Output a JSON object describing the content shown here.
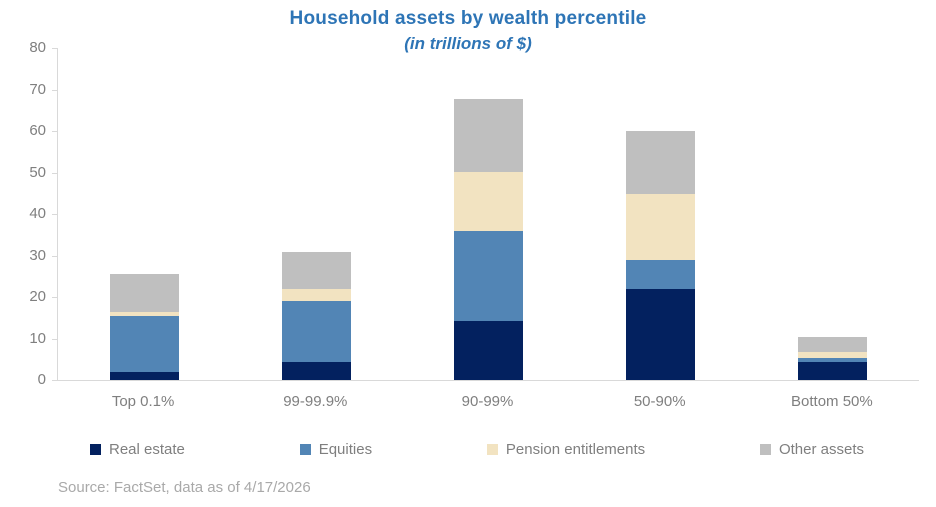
{
  "header": {
    "title": "Household assets by wealth percentile",
    "subtitle": "(in trillions of $)"
  },
  "footer": {
    "source": "Source: FactSet, data as of 4/17/2026"
  },
  "chart_data": {
    "type": "bar",
    "stacked": true,
    "title": "Household assets by wealth percentile",
    "subtitle": "(in trillions of $)",
    "categories": [
      "Top 0.1%",
      "99-99.9%",
      "90-99%",
      "50-90%",
      "Bottom 50%"
    ],
    "series": [
      {
        "name": "Real estate",
        "color": "#03215f",
        "values": [
          1.9,
          4.3,
          14.2,
          22.0,
          4.3
        ]
      },
      {
        "name": "Equities",
        "color": "#5285b5",
        "values": [
          13.6,
          14.7,
          21.7,
          6.8,
          1.0
        ]
      },
      {
        "name": "Pension entitlements",
        "color": "#f2e3c1",
        "values": [
          1.0,
          2.9,
          14.2,
          16.1,
          1.4
        ]
      },
      {
        "name": "Other assets",
        "color": "#bfbfbf",
        "values": [
          9.0,
          9.0,
          17.7,
          15.1,
          3.6
        ]
      }
    ],
    "totals": [
      25.5,
      30.9,
      67.8,
      60.0,
      10.3
    ],
    "xlabel": "",
    "ylabel": "",
    "ylim": [
      0,
      80
    ],
    "ytick_step": 10,
    "yticks": [
      0,
      10,
      20,
      30,
      40,
      50,
      60,
      70,
      80
    ],
    "grid": false,
    "legend_position": "bottom",
    "axis_color": "#d9d9d9",
    "tick_label_color": "#7f7f7f",
    "title_color": "#2e75b6",
    "source": "Source: FactSet, data as of 4/17/2026"
  }
}
